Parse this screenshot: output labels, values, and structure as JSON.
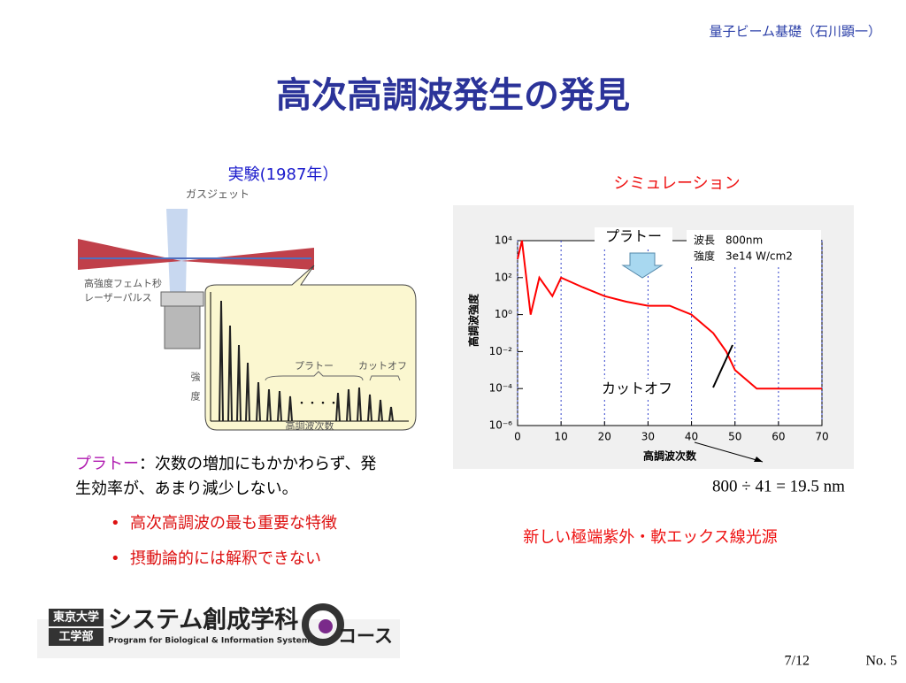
{
  "header": {
    "course": "量子ビーム基礎（石川顕一）",
    "title": "高次高調波発生の発見"
  },
  "experiment": {
    "caption": "実験(1987年）",
    "gas_jet": "ガスジェット",
    "laser": [
      "高強度フェムト秒",
      "レーザーパルス"
    ],
    "intensity": "強　度",
    "plateau": "プラトー",
    "cutoff": "カットオフ",
    "x_label": "高調波次数"
  },
  "simulation": {
    "caption": "シミュレーション"
  },
  "chart_data": {
    "type": "line",
    "x_label": "高調波次数",
    "y_label": "高調波強度",
    "color": "#ff0000",
    "x": [
      0,
      1,
      3,
      5,
      8,
      10,
      15,
      20,
      25,
      30,
      35,
      40,
      45,
      48,
      50,
      55,
      60,
      65,
      70
    ],
    "values": [
      1000,
      10000,
      1,
      100,
      10,
      100,
      30,
      10,
      5,
      3,
      3,
      1,
      0.1,
      0.01,
      0.001,
      0.0001,
      0.0001,
      0.0001,
      0.0001
    ],
    "xlim": [
      0,
      70
    ],
    "xticks": [
      0,
      10,
      20,
      30,
      40,
      50,
      60,
      70
    ],
    "ylim": [
      1e-06,
      10000
    ],
    "log_y": true,
    "grid": "x",
    "yticks": [
      {
        "value": 1e-06,
        "label": "10⁻⁶"
      },
      {
        "value": 0.0001,
        "label": "10⁻⁴"
      },
      {
        "value": 0.01,
        "label": "10⁻²"
      },
      {
        "value": 1,
        "label": "10⁰"
      },
      {
        "value": 100,
        "label": "10²"
      },
      {
        "value": 10000,
        "label": "10⁴"
      }
    ],
    "legend_text": [
      "波長　800nm",
      "強度　3e14 W/cm2"
    ],
    "annotations": [
      "プラトー",
      "カットオフ"
    ]
  },
  "equation": "800 ÷ 41 = 19.5 nm",
  "notes": {
    "term": "プラトー",
    "definition": "：次数の増加にもかかわらず、発",
    "definition2": "生効率が、あまり減少しない。",
    "bullets": [
      "高次高調波の最も重要な特徴",
      "摂動論的には解釈できない"
    ]
  },
  "source": "新しい極端紫外・軟エックス線光源",
  "logo": {
    "univ": "東京大学",
    "faculty": "工学部",
    "dept": "システム創成学科",
    "course": "コース",
    "program": "Program for Biological & Information Systems"
  },
  "footer": {
    "page": "7/12",
    "number": "No. 5"
  }
}
